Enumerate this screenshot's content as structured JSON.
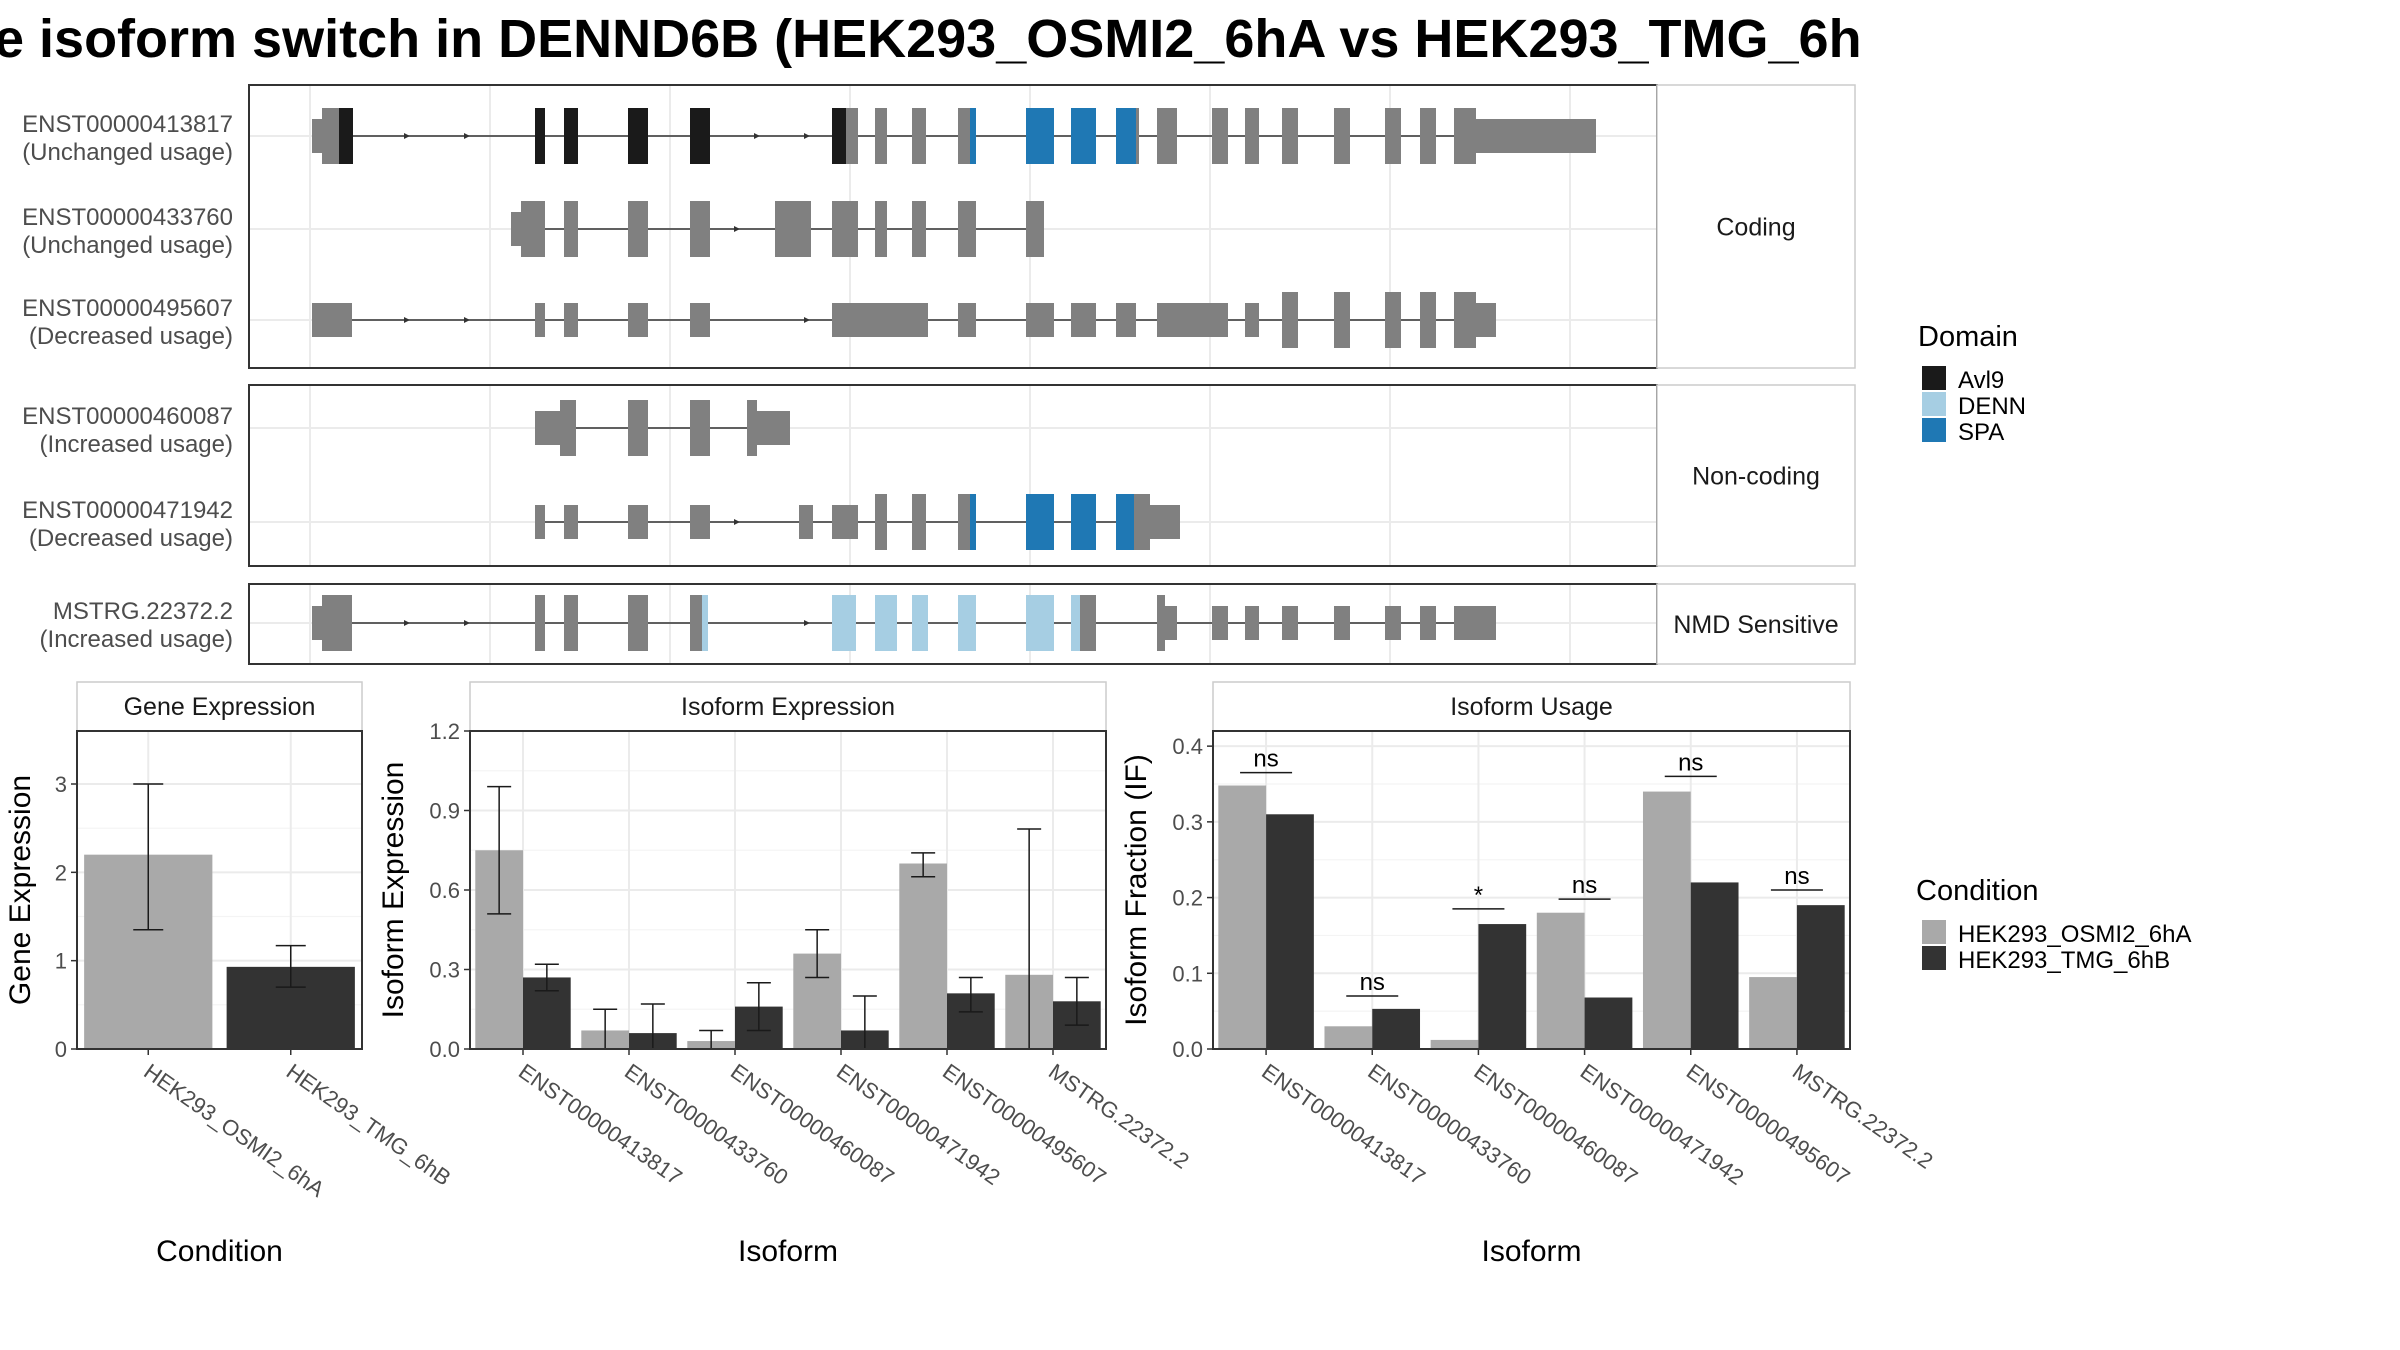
{
  "figure": {
    "title": "e isoform switch in DENND6B (HEK293_OSMI2_6hA vs HEK293_TMG_6h"
  },
  "colors": {
    "exon": "#808080",
    "intron": "#333333",
    "Avl9": "#1a1a1a",
    "DENN": "#a6cee3",
    "SPA": "#1f78b4",
    "cond1": "#a9a9a9",
    "cond2": "#333333",
    "panel_strip": "#ffffff",
    "grid": "#ebebeb"
  },
  "legend_domain": {
    "title": "Domain",
    "items": [
      {
        "label": "Avl9",
        "color": "#1a1a1a"
      },
      {
        "label": "DENN",
        "color": "#a6cee3"
      },
      {
        "label": "SPA",
        "color": "#1f78b4"
      }
    ]
  },
  "legend_condition": {
    "title": "Condition",
    "items": [
      {
        "label": "HEK293_OSMI2_6hA",
        "color": "#a9a9a9"
      },
      {
        "label": "HEK293_TMG_6hB",
        "color": "#333333"
      }
    ]
  },
  "transcript_groups": [
    {
      "label": "Coding",
      "transcripts": [
        {
          "id": "ENST00000413817",
          "usage": "(Unchanged usage)"
        },
        {
          "id": "ENST00000433760",
          "usage": "(Unchanged usage)"
        },
        {
          "id": "ENST00000495607",
          "usage": "(Decreased usage)"
        }
      ]
    },
    {
      "label": "Non-coding",
      "transcripts": [
        {
          "id": "ENST00000460087",
          "usage": "(Increased usage)"
        },
        {
          "id": "ENST00000471942",
          "usage": "(Decreased usage)"
        }
      ]
    },
    {
      "label": "NMD Sensitive",
      "transcripts": [
        {
          "id": "MSTRG.22372.2",
          "usage": "(Increased usage)"
        }
      ]
    }
  ],
  "chart_data": [
    {
      "type": "bar",
      "title": "Gene Expression",
      "xlabel": "Condition",
      "ylabel": "Gene Expression",
      "categories": [
        "HEK293_OSMI2_6hA",
        "HEK293_TMG_6hB"
      ],
      "values": [
        2.2,
        0.93
      ],
      "error_low": [
        1.35,
        0.7
      ],
      "error_high": [
        3.0,
        1.17
      ],
      "ylim": [
        0,
        3.6
      ],
      "yticks": [
        "0",
        "1",
        "2",
        "3"
      ],
      "ytick_values": [
        0,
        1,
        2,
        3
      ]
    },
    {
      "type": "bar",
      "title": "Isoform Expression",
      "xlabel": "Isoform",
      "ylabel": "Isoform Expression",
      "categories": [
        "ENST00000413817",
        "ENST00000433760",
        "ENST00000460087",
        "ENST00000471942",
        "ENST00000495607",
        "MSTRG.22372.2"
      ],
      "series": [
        {
          "name": "HEK293_OSMI2_6hA",
          "values": [
            0.75,
            0.07,
            0.03,
            0.36,
            0.7,
            0.28
          ],
          "error_low": [
            0.51,
            0.0,
            0.0,
            0.27,
            0.65,
            0.0
          ],
          "error_high": [
            0.99,
            0.15,
            0.07,
            0.45,
            0.74,
            0.83
          ]
        },
        {
          "name": "HEK293_TMG_6hB",
          "values": [
            0.27,
            0.06,
            0.16,
            0.07,
            0.21,
            0.18
          ],
          "error_low": [
            0.22,
            0.0,
            0.07,
            0.0,
            0.14,
            0.09
          ],
          "error_high": [
            0.32,
            0.17,
            0.25,
            0.2,
            0.27,
            0.27
          ]
        }
      ],
      "ylim": [
        0,
        1.2
      ],
      "yticks": [
        "0.0",
        "0.3",
        "0.6",
        "0.9",
        "1.2"
      ],
      "ytick_values": [
        0,
        0.3,
        0.6,
        0.9,
        1.2
      ]
    },
    {
      "type": "bar",
      "title": "Isoform Usage",
      "xlabel": "Isoform",
      "ylabel": "Isoform Fraction (IF)",
      "categories": [
        "ENST00000413817",
        "ENST00000433760",
        "ENST00000460087",
        "ENST00000471942",
        "ENST00000495607",
        "MSTRG.22372.2"
      ],
      "series": [
        {
          "name": "HEK293_OSMI2_6hA",
          "values": [
            0.348,
            0.03,
            0.012,
            0.18,
            0.34,
            0.095
          ]
        },
        {
          "name": "HEK293_TMG_6hB",
          "values": [
            0.31,
            0.053,
            0.165,
            0.068,
            0.22,
            0.19
          ]
        }
      ],
      "significance": [
        "ns",
        "ns",
        "*",
        "ns",
        "ns",
        "ns"
      ],
      "sig_level": [
        0.365,
        0.07,
        0.185,
        0.198,
        0.36,
        0.21
      ],
      "ylim": [
        0,
        0.42
      ],
      "yticks": [
        "0.0",
        "0.1",
        "0.2",
        "0.3",
        "0.4"
      ],
      "ytick_values": [
        0,
        0.1,
        0.2,
        0.3,
        0.4
      ]
    }
  ]
}
